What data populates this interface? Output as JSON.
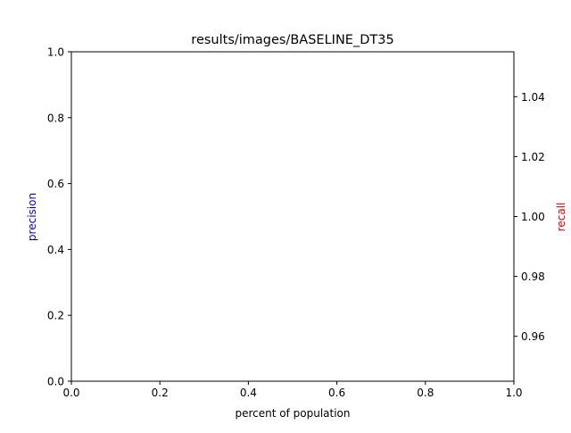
{
  "chart_data": {
    "type": "line",
    "title": "results/images/BASELINE_DT35",
    "xlabel": "percent of population",
    "ylabel_left": "precision",
    "ylabel_right": "recall",
    "colors": {
      "precision_label": "#0000cc",
      "recall_label": "#dd0000",
      "axes": "#000000"
    },
    "xlim": [
      0,
      1
    ],
    "ylim_left": [
      0,
      1
    ],
    "ylim_right": [
      0.945,
      1.055
    ],
    "x_ticks": [
      "0.0",
      "0.2",
      "0.4",
      "0.6",
      "0.8",
      "1.0"
    ],
    "y_left_ticks": [
      "0.0",
      "0.2",
      "0.4",
      "0.6",
      "0.8",
      "1.0"
    ],
    "y_right_ticks": [
      "0.96",
      "0.98",
      "1.00",
      "1.02",
      "1.04"
    ],
    "grid": false,
    "series": []
  }
}
